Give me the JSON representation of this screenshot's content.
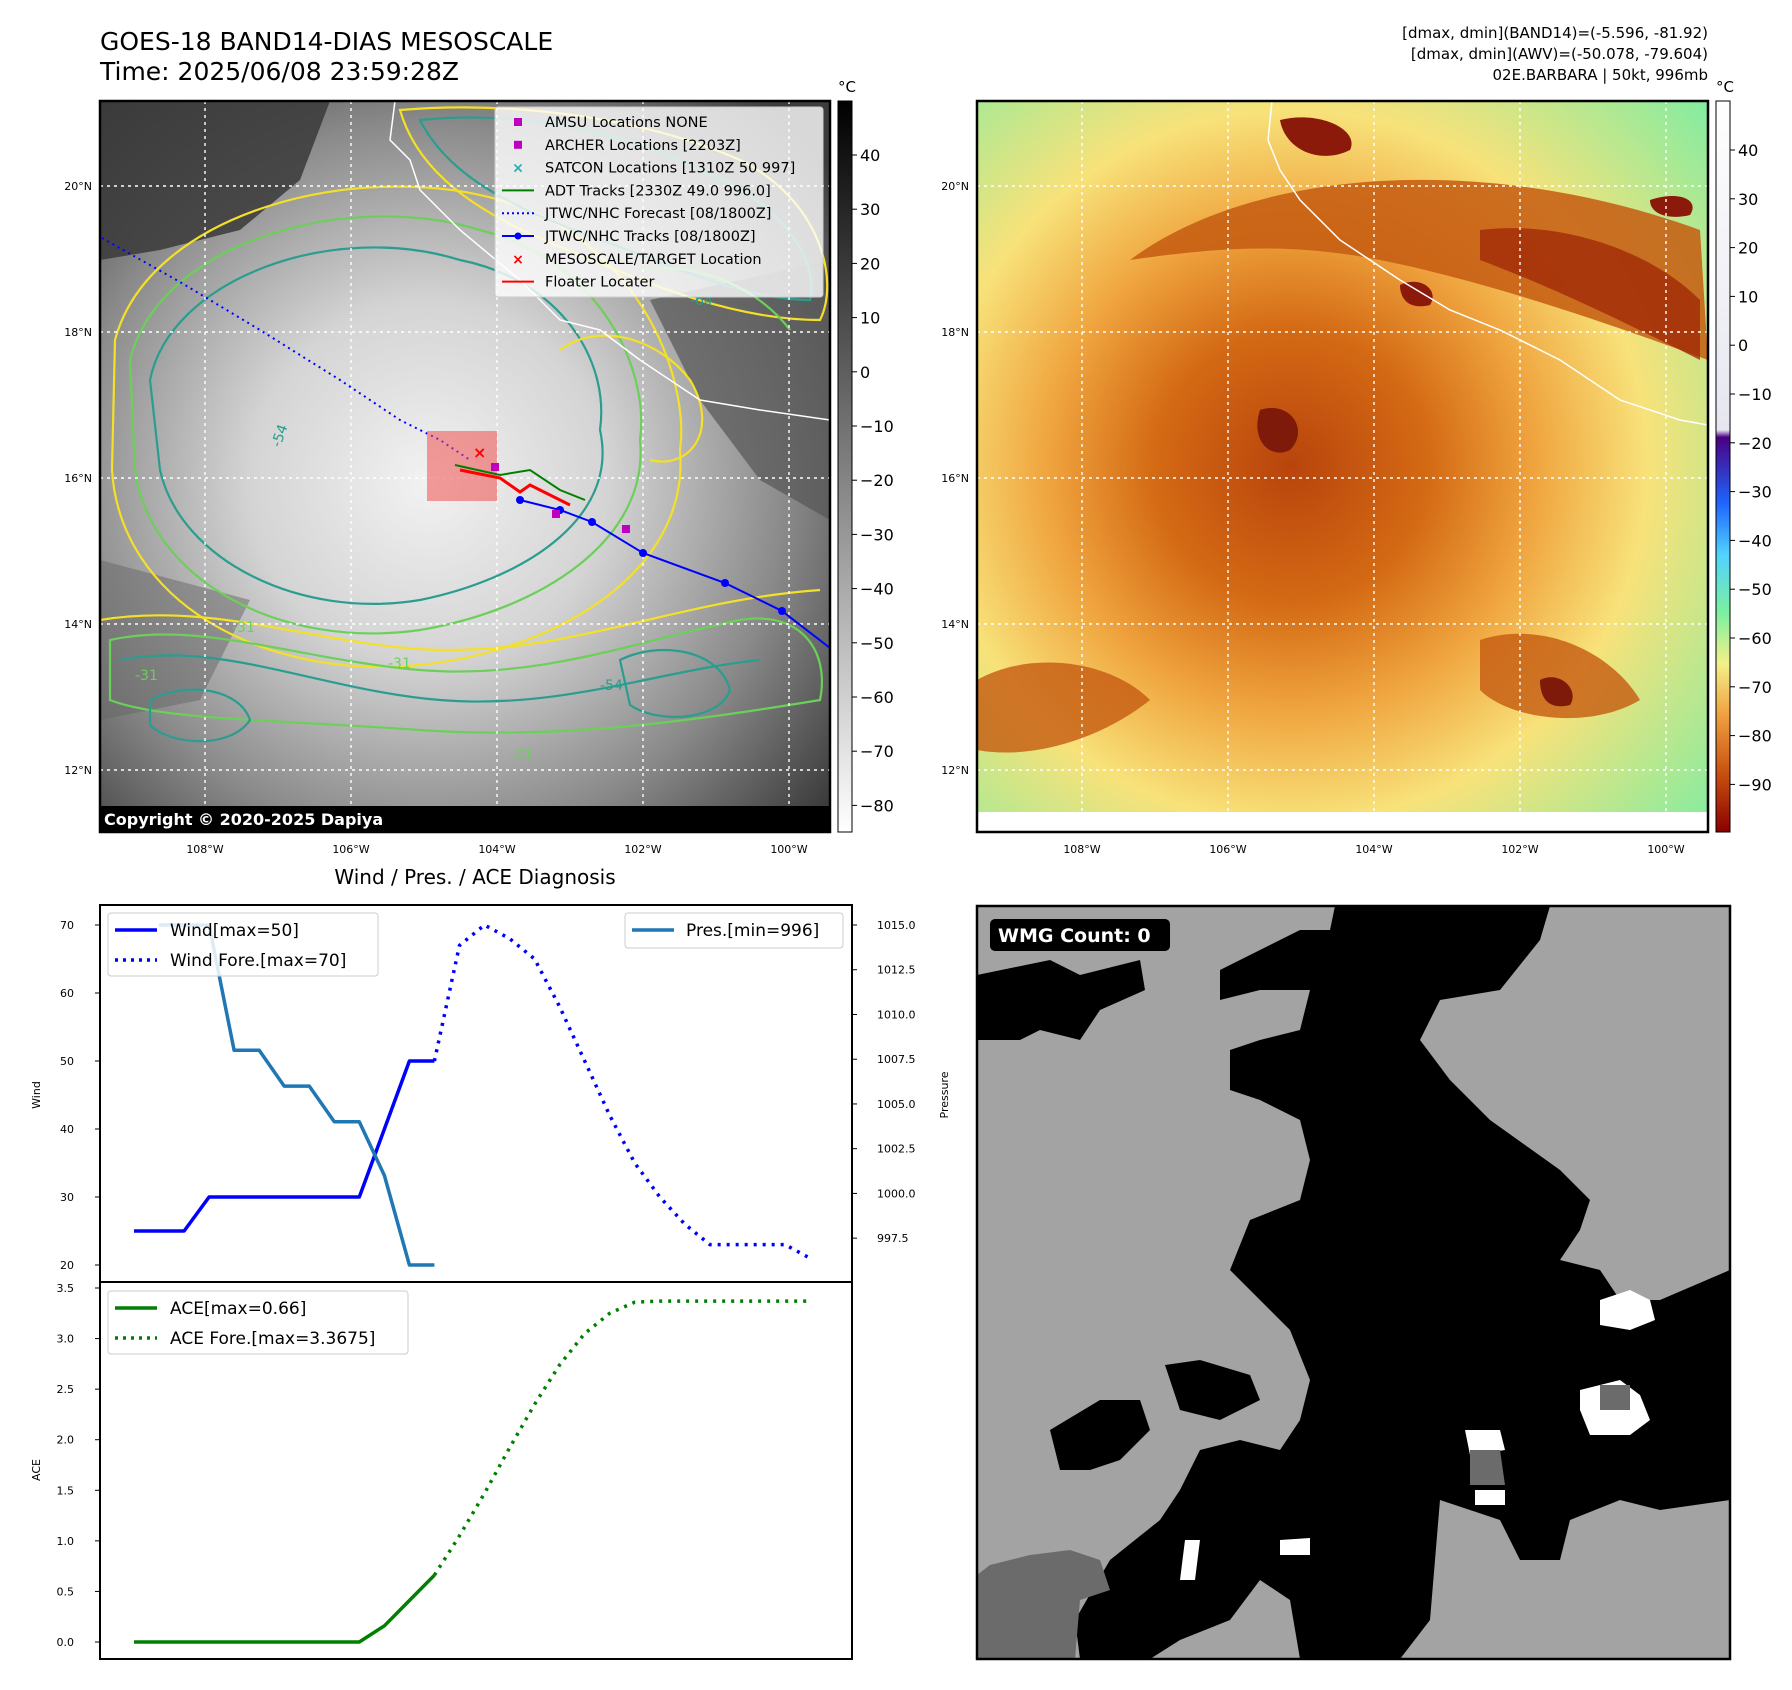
{
  "header": {
    "title_line1": "GOES-18 BAND14-DIAS MESOSCALE",
    "title_line2": "Time: 2025/06/08 23:59:28Z",
    "right_line1": "[dmax, dmin](BAND14)=(-5.596, -81.92)",
    "right_line2": "[dmax, dmin](AWV)=(-50.078, -79.604)",
    "right_line3": "02E.BARBARA | 50kt, 996mb"
  },
  "map_axes": {
    "lat_labels": [
      "20°N",
      "18°N",
      "16°N",
      "14°N",
      "12°N"
    ],
    "lon_labels": [
      "108°W",
      "106°W",
      "104°W",
      "102°W",
      "100°W"
    ]
  },
  "ir_panel": {
    "colorbar_unit": "°C",
    "colorbar_ticks": [
      "40",
      "30",
      "20",
      "10",
      "0",
      "−10",
      "−20",
      "−30",
      "−40",
      "−50",
      "−60",
      "−70",
      "−80"
    ],
    "copyright": "Copyright © 2020-2025 Dapiya",
    "legend": [
      {
        "label": "AMSU Locations NONE",
        "marker": "square",
        "color": "#c000c0"
      },
      {
        "label": "ARCHER Locations [2203Z]",
        "marker": "square",
        "color": "#c000c0"
      },
      {
        "label": "SATCON Locations [1310Z 50 997]",
        "marker": "x",
        "color": "#20b0b0"
      },
      {
        "label": "ADT Tracks [2330Z 49.0 996.0]",
        "marker": "line",
        "color": "#008000"
      },
      {
        "label": "JTWC/NHC Forecast [08/1800Z]",
        "marker": "dotted",
        "color": "#0000ff"
      },
      {
        "label": "JTWC/NHC Tracks [08/1800Z]",
        "marker": "dotline",
        "color": "#0000ff"
      },
      {
        "label": "MESOSCALE/TARGET Location",
        "marker": "x",
        "color": "#ff0000"
      },
      {
        "label": "Floater Locater",
        "marker": "line",
        "color": "#ff0000"
      }
    ],
    "contour_labels": [
      "-54",
      "-31",
      "-31",
      "-54",
      "-31",
      "-64",
      "-31"
    ]
  },
  "awv_panel": {
    "colorbar_unit": "°C",
    "colorbar_ticks": [
      "40",
      "30",
      "20",
      "10",
      "0",
      "−10",
      "−20",
      "−30",
      "−40",
      "−50",
      "−60",
      "−70",
      "−80",
      "−90"
    ]
  },
  "diagnosis": {
    "title": "Wind / Pres. / ACE Diagnosis",
    "wind_ylabel": "Wind",
    "pressure_ylabel": "Pressure",
    "ace_ylabel": "ACE",
    "wind_ticks": [
      "70",
      "60",
      "50",
      "40",
      "30",
      "20"
    ],
    "pressure_ticks": [
      "1015.0",
      "1012.5",
      "1010.0",
      "1007.5",
      "1005.0",
      "1002.5",
      "1000.0",
      "997.5"
    ],
    "ace_ticks": [
      "3.5",
      "3.0",
      "2.5",
      "2.0",
      "1.5",
      "1.0",
      "0.5",
      "0.0"
    ],
    "legend_wind": "Wind[max=50]",
    "legend_wind_fore": "Wind Fore.[max=70]",
    "legend_pres": "Pres.[min=996]",
    "legend_ace": "ACE[max=0.66]",
    "legend_ace_fore": "ACE Fore.[max=3.3675]"
  },
  "wmg_panel": {
    "count_label": "WMG Count: 0"
  },
  "chart_data": [
    {
      "type": "line",
      "ylabel": "Wind",
      "y2label": "Pressure",
      "ylim": [
        20,
        70
      ],
      "y2lim": [
        996,
        1015
      ],
      "series": [
        {
          "name": "Wind[max=50]",
          "axis": "left",
          "style": "solid",
          "color": "#0000ff",
          "x": [
            0,
            1,
            2,
            3,
            4,
            5,
            6,
            7,
            8,
            9,
            10,
            11,
            12
          ],
          "y": [
            25,
            25,
            25,
            30,
            30,
            30,
            30,
            30,
            30,
            30,
            40,
            50,
            50
          ]
        },
        {
          "name": "Wind Fore.[max=70]",
          "axis": "left",
          "style": "dotted",
          "color": "#0000ff",
          "x": [
            12,
            13,
            14,
            15,
            16,
            17,
            18,
            19,
            20,
            21,
            22,
            23,
            24,
            25,
            26,
            27
          ],
          "y": [
            50,
            67,
            70,
            68,
            65,
            58,
            50,
            42,
            35,
            30,
            26,
            23,
            23,
            23,
            23,
            21
          ]
        },
        {
          "name": "Pres.[min=996]",
          "axis": "right",
          "style": "solid",
          "color": "#1f77b4",
          "x": [
            1,
            2,
            3,
            4,
            5,
            6,
            7,
            8,
            9,
            10,
            11,
            12
          ],
          "y": [
            1015,
            1015,
            1015,
            1008,
            1008,
            1006,
            1006,
            1004,
            1004,
            1001,
            996,
            996
          ]
        }
      ]
    },
    {
      "type": "line",
      "ylabel": "ACE",
      "ylim": [
        0,
        3.5
      ],
      "series": [
        {
          "name": "ACE[max=0.66]",
          "style": "solid",
          "color": "#008000",
          "x": [
            0,
            1,
            2,
            3,
            4,
            5,
            6,
            7,
            8,
            9,
            10,
            11,
            12
          ],
          "y": [
            0,
            0,
            0,
            0,
            0,
            0,
            0,
            0,
            0,
            0,
            0.16,
            0.41,
            0.66
          ]
        },
        {
          "name": "ACE Fore.[max=3.3675]",
          "style": "dotted",
          "color": "#008000",
          "x": [
            12,
            13,
            14,
            15,
            16,
            17,
            18,
            19,
            20,
            21,
            22,
            23,
            24,
            25,
            26,
            27
          ],
          "y": [
            0.66,
            1.05,
            1.47,
            1.92,
            2.35,
            2.74,
            3.05,
            3.25,
            3.36,
            3.37,
            3.37,
            3.37,
            3.37,
            3.37,
            3.37,
            3.37
          ]
        }
      ]
    }
  ]
}
